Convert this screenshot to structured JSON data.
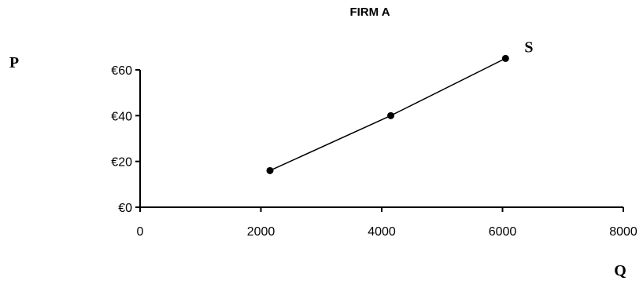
{
  "chart_data": {
    "type": "line",
    "title": "FIRM A",
    "ylabel": "P",
    "xlabel": "Q",
    "x_ticks": [
      "0",
      "2000",
      "4000",
      "6000",
      "8000"
    ],
    "y_ticks": [
      "€0",
      "€20",
      "€40",
      "€60"
    ],
    "xlim": [
      0,
      8000
    ],
    "ylim": [
      0,
      60
    ],
    "grid": false,
    "series": [
      {
        "name": "S",
        "x": [
          2150,
          4150,
          6050
        ],
        "y": [
          16,
          40,
          65
        ],
        "color": "#000000"
      }
    ]
  }
}
